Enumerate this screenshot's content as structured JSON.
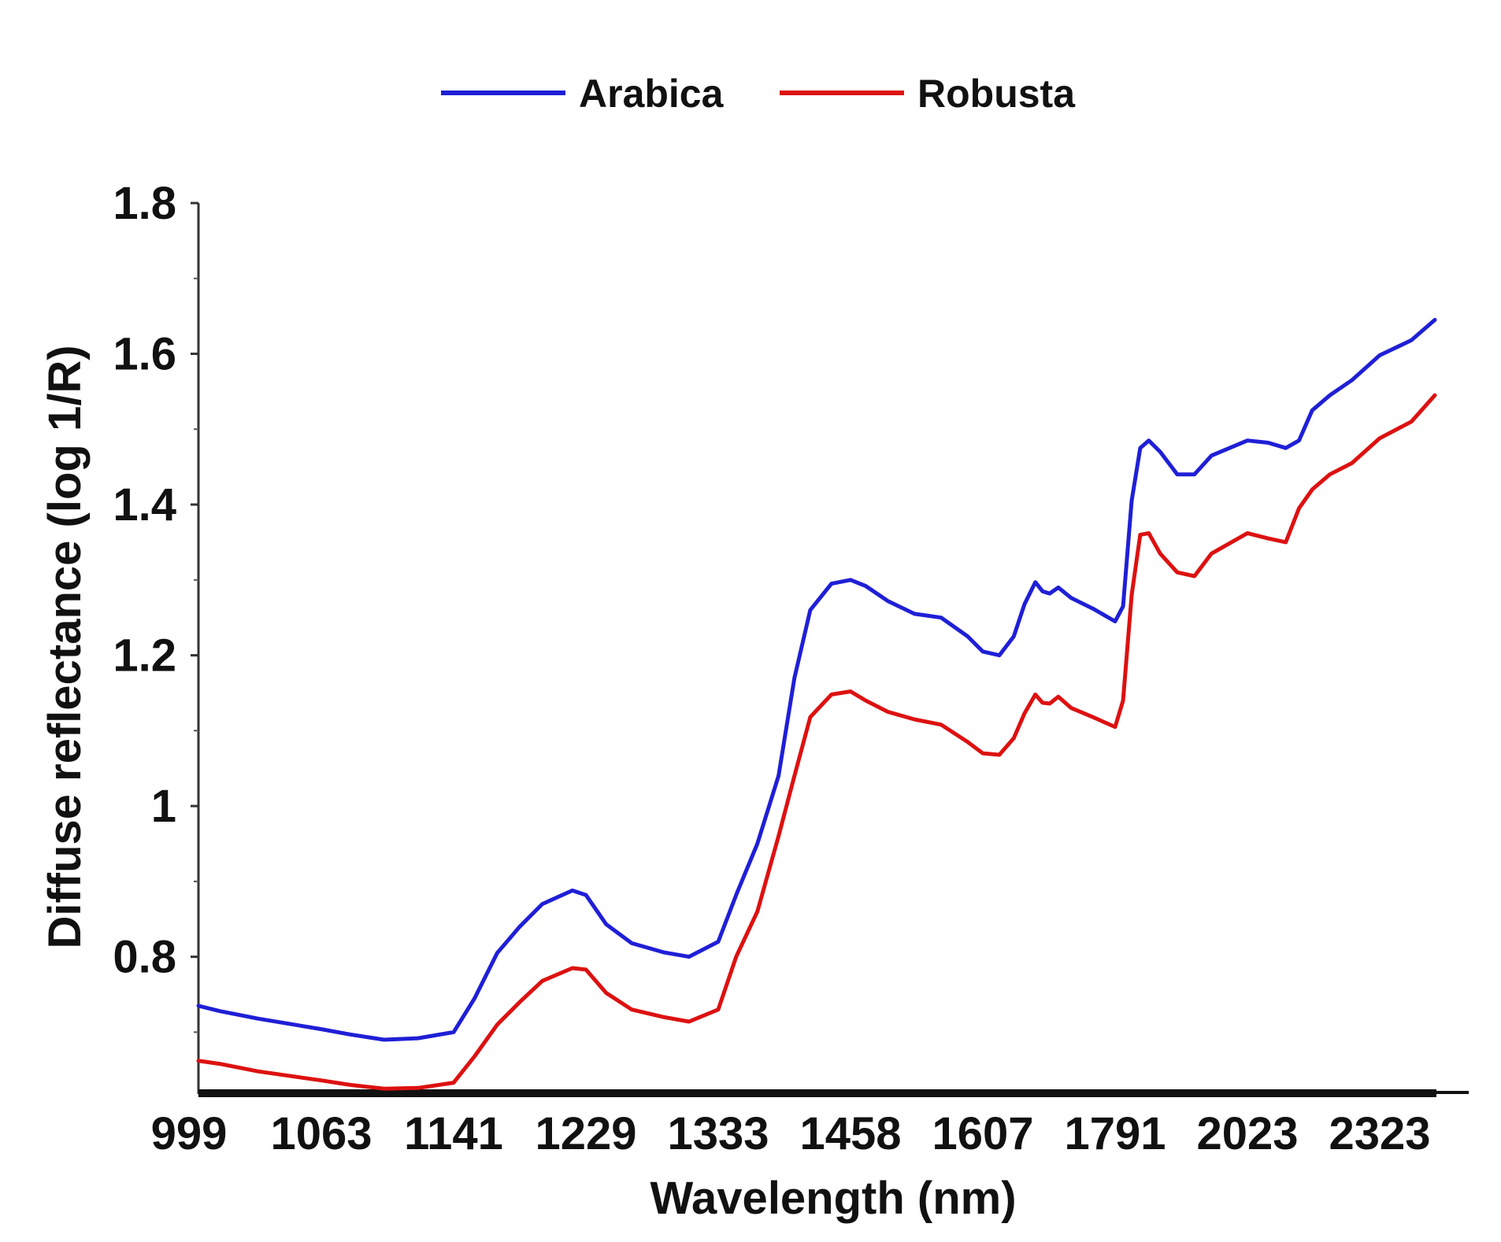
{
  "chart_data": {
    "type": "line",
    "xlabel": "Wavelength (nm)",
    "ylabel": "Diffuse reflectance (log 1/R)",
    "x_tick_labels": [
      "999",
      "1063",
      "1141",
      "1229",
      "1333",
      "1458",
      "1607",
      "1791",
      "2023",
      "2323"
    ],
    "y_ticks": [
      0.8,
      1,
      1.2,
      1.4,
      1.6,
      1.8
    ],
    "y_tick_labels": [
      "0.8",
      "1",
      "1.2",
      "1.4",
      "1.6",
      "1.8"
    ],
    "ylim": [
      0.62,
      1.8
    ],
    "legend_position": "top-center",
    "grid": false,
    "series": [
      {
        "name": "Arabica",
        "color": "#1f1fd6",
        "points": [
          [
            999,
            0.735
          ],
          [
            1010,
            0.728
          ],
          [
            1030,
            0.718
          ],
          [
            1063,
            0.704
          ],
          [
            1080,
            0.697
          ],
          [
            1100,
            0.69
          ],
          [
            1120,
            0.692
          ],
          [
            1141,
            0.7
          ],
          [
            1155,
            0.745
          ],
          [
            1170,
            0.805
          ],
          [
            1185,
            0.84
          ],
          [
            1200,
            0.87
          ],
          [
            1220,
            0.888
          ],
          [
            1229,
            0.882
          ],
          [
            1245,
            0.843
          ],
          [
            1265,
            0.818
          ],
          [
            1290,
            0.806
          ],
          [
            1310,
            0.8
          ],
          [
            1333,
            0.82
          ],
          [
            1350,
            0.882
          ],
          [
            1370,
            0.95
          ],
          [
            1390,
            1.04
          ],
          [
            1405,
            1.17
          ],
          [
            1420,
            1.26
          ],
          [
            1440,
            1.295
          ],
          [
            1458,
            1.3
          ],
          [
            1475,
            1.292
          ],
          [
            1500,
            1.272
          ],
          [
            1530,
            1.255
          ],
          [
            1560,
            1.25
          ],
          [
            1590,
            1.225
          ],
          [
            1607,
            1.205
          ],
          [
            1630,
            1.2
          ],
          [
            1650,
            1.225
          ],
          [
            1665,
            1.268
          ],
          [
            1680,
            1.297
          ],
          [
            1690,
            1.285
          ],
          [
            1700,
            1.282
          ],
          [
            1712,
            1.29
          ],
          [
            1730,
            1.276
          ],
          [
            1760,
            1.262
          ],
          [
            1791,
            1.245
          ],
          [
            1805,
            1.265
          ],
          [
            1820,
            1.405
          ],
          [
            1835,
            1.475
          ],
          [
            1850,
            1.485
          ],
          [
            1870,
            1.47
          ],
          [
            1900,
            1.44
          ],
          [
            1930,
            1.44
          ],
          [
            1960,
            1.465
          ],
          [
            2023,
            1.485
          ],
          [
            2070,
            1.482
          ],
          [
            2110,
            1.475
          ],
          [
            2140,
            1.485
          ],
          [
            2170,
            1.525
          ],
          [
            2210,
            1.545
          ],
          [
            2260,
            1.565
          ],
          [
            2323,
            1.598
          ],
          [
            2350,
            1.618
          ],
          [
            2370,
            1.645
          ]
        ]
      },
      {
        "name": "Robusta",
        "color": "#dd1111",
        "points": [
          [
            999,
            0.662
          ],
          [
            1010,
            0.658
          ],
          [
            1030,
            0.648
          ],
          [
            1063,
            0.636
          ],
          [
            1080,
            0.63
          ],
          [
            1100,
            0.625
          ],
          [
            1120,
            0.626
          ],
          [
            1141,
            0.633
          ],
          [
            1155,
            0.668
          ],
          [
            1170,
            0.71
          ],
          [
            1185,
            0.74
          ],
          [
            1200,
            0.768
          ],
          [
            1220,
            0.785
          ],
          [
            1229,
            0.783
          ],
          [
            1245,
            0.752
          ],
          [
            1265,
            0.73
          ],
          [
            1290,
            0.72
          ],
          [
            1310,
            0.714
          ],
          [
            1333,
            0.73
          ],
          [
            1350,
            0.8
          ],
          [
            1370,
            0.86
          ],
          [
            1390,
            0.96
          ],
          [
            1405,
            1.04
          ],
          [
            1420,
            1.118
          ],
          [
            1440,
            1.148
          ],
          [
            1458,
            1.152
          ],
          [
            1475,
            1.14
          ],
          [
            1500,
            1.125
          ],
          [
            1530,
            1.115
          ],
          [
            1560,
            1.108
          ],
          [
            1590,
            1.085
          ],
          [
            1607,
            1.07
          ],
          [
            1630,
            1.068
          ],
          [
            1650,
            1.09
          ],
          [
            1665,
            1.123
          ],
          [
            1680,
            1.148
          ],
          [
            1690,
            1.137
          ],
          [
            1700,
            1.136
          ],
          [
            1712,
            1.145
          ],
          [
            1730,
            1.13
          ],
          [
            1760,
            1.118
          ],
          [
            1791,
            1.105
          ],
          [
            1805,
            1.14
          ],
          [
            1820,
            1.28
          ],
          [
            1835,
            1.36
          ],
          [
            1850,
            1.362
          ],
          [
            1870,
            1.335
          ],
          [
            1900,
            1.31
          ],
          [
            1930,
            1.305
          ],
          [
            1960,
            1.335
          ],
          [
            2023,
            1.362
          ],
          [
            2070,
            1.355
          ],
          [
            2110,
            1.35
          ],
          [
            2140,
            1.395
          ],
          [
            2170,
            1.42
          ],
          [
            2210,
            1.44
          ],
          [
            2260,
            1.455
          ],
          [
            2323,
            1.488
          ],
          [
            2350,
            1.51
          ],
          [
            2370,
            1.545
          ]
        ]
      }
    ]
  }
}
